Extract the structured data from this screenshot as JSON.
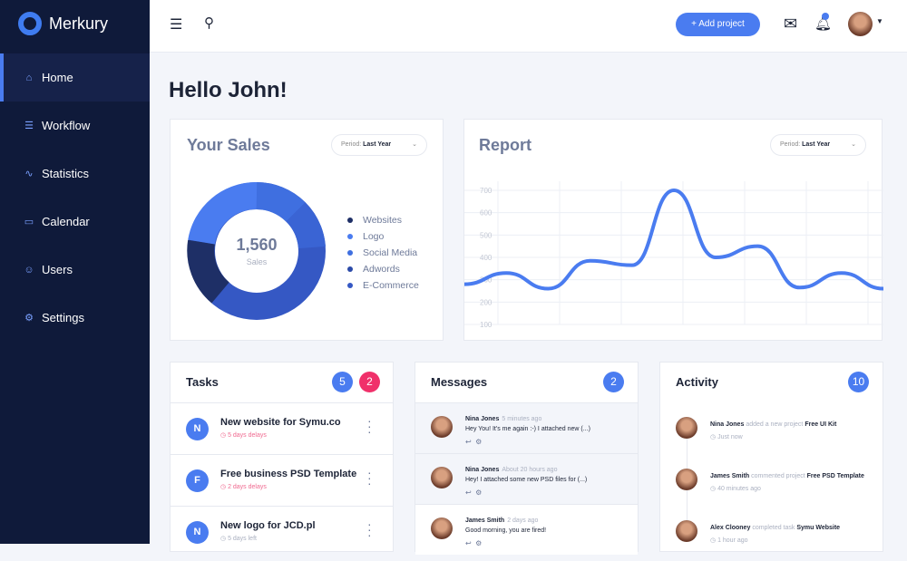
{
  "app": {
    "name": "Merkury"
  },
  "sidebar": {
    "items": [
      {
        "label": "Home",
        "icon": "home-icon",
        "active": true
      },
      {
        "label": "Workflow",
        "icon": "workflow-icon"
      },
      {
        "label": "Statistics",
        "icon": "statistics-icon"
      },
      {
        "label": "Calendar",
        "icon": "calendar-icon"
      },
      {
        "label": "Users",
        "icon": "user-icon"
      },
      {
        "label": "Settings",
        "icon": "gear-icon"
      }
    ]
  },
  "header": {
    "add_project": "+ Add project"
  },
  "greeting": "Hello John!",
  "sales": {
    "title": "Your Sales",
    "period_label": "Period:",
    "period_value": "Last Year",
    "total": "1,560",
    "total_label": "Sales",
    "legend": [
      {
        "label": "Websites",
        "color": "#1e2f66"
      },
      {
        "label": "Logo",
        "color": "#4a7cf0"
      },
      {
        "label": "Social Media",
        "color": "#3f6fe0"
      },
      {
        "label": "Adwords",
        "color": "#2b4aa8"
      },
      {
        "label": "E-Commerce",
        "color": "#3558c4"
      }
    ]
  },
  "report": {
    "title": "Report",
    "period_label": "Period:",
    "period_value": "Last Year"
  },
  "chart_data": {
    "type": "line",
    "yticks": [
      "700",
      "600",
      "500",
      "400",
      "300",
      "200",
      "100"
    ],
    "ylim": [
      100,
      700
    ],
    "grid": true,
    "color": "#4a7cf0",
    "values": [
      280,
      330,
      260,
      385,
      365,
      700,
      400,
      450,
      265,
      330,
      260
    ]
  },
  "tasks": {
    "title": "Tasks",
    "badge_blue": "5",
    "badge_red": "2",
    "items": [
      {
        "initial": "N",
        "title": "New website for Symu.co",
        "status": "5 days delays",
        "late": true
      },
      {
        "initial": "F",
        "title": "Free business PSD Template",
        "status": "2 days delays",
        "late": true
      },
      {
        "initial": "N",
        "title": "New logo for JCD.pl",
        "status": "5 days left",
        "late": false
      }
    ]
  },
  "messages": {
    "title": "Messages",
    "badge": "2",
    "items": [
      {
        "name": "Nina Jones",
        "time": "5 minutes ago",
        "text": "Hey You! It's me again :-) I attached new (...)"
      },
      {
        "name": "Nina Jones",
        "time": "About 20 hours ago",
        "text": "Hey! I attached some new PSD files for (...)"
      },
      {
        "name": "James Smith",
        "time": "2 days ago",
        "text": "Good morning, you are fired!"
      }
    ]
  },
  "activity": {
    "title": "Activity",
    "badge": "10",
    "items": [
      {
        "name": "Nina Jones",
        "action": "added a new project",
        "target": "Free UI Kit",
        "time": "Just now"
      },
      {
        "name": "James Smith",
        "action": "commented project",
        "target": "Free PSD Template",
        "time": "40 minutes ago"
      },
      {
        "name": "Alex Clooney",
        "action": "completed task",
        "target": "Symu Website",
        "time": "1 hour ago"
      }
    ]
  }
}
